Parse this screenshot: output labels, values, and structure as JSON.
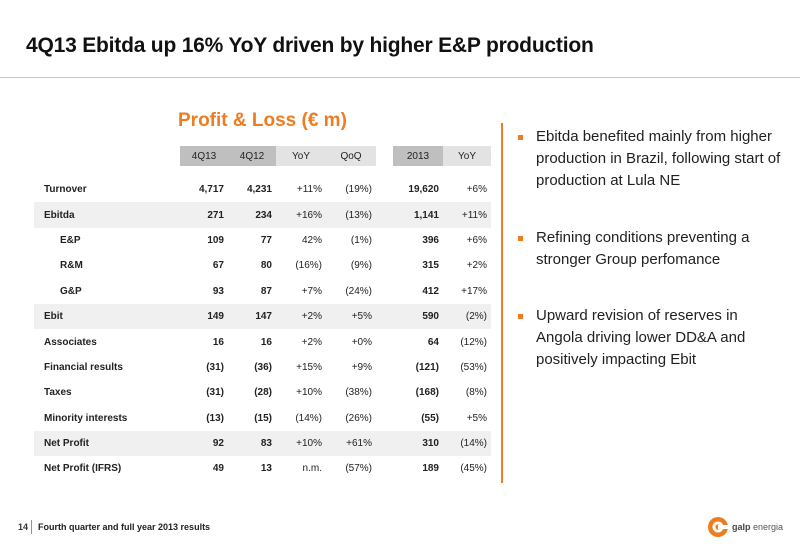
{
  "slide": {
    "title": "4Q13 Ebitda up 16% YoY driven by higher E&P production",
    "section_heading": "Profit & Loss (€ m)"
  },
  "table": {
    "headers": {
      "q4_13": "4Q13",
      "q4_12": "4Q12",
      "yoy": "YoY",
      "qoq": "QoQ",
      "fy_2013": "2013",
      "fy_yoy": "YoY"
    },
    "rows": [
      {
        "label": "Turnover",
        "q4_13": "4,717",
        "q4_12": "4,231",
        "yoy": "+11%",
        "qoq": "(19%)",
        "fy_2013": "19,620",
        "fy_yoy": "+6%"
      },
      {
        "label": "Ebitda",
        "q4_13": "271",
        "q4_12": "234",
        "yoy": "+16%",
        "qoq": "(13%)",
        "fy_2013": "1,141",
        "fy_yoy": "+11%"
      },
      {
        "label": "E&P",
        "q4_13": "109",
        "q4_12": "77",
        "yoy": "42%",
        "qoq": "(1%)",
        "fy_2013": "396",
        "fy_yoy": "+6%"
      },
      {
        "label": "R&M",
        "q4_13": "67",
        "q4_12": "80",
        "yoy": "(16%)",
        "qoq": "(9%)",
        "fy_2013": "315",
        "fy_yoy": "+2%"
      },
      {
        "label": "G&P",
        "q4_13": "93",
        "q4_12": "87",
        "yoy": "+7%",
        "qoq": "(24%)",
        "fy_2013": "412",
        "fy_yoy": "+17%"
      },
      {
        "label": "Ebit",
        "q4_13": "149",
        "q4_12": "147",
        "yoy": "+2%",
        "qoq": "+5%",
        "fy_2013": "590",
        "fy_yoy": "(2%)"
      },
      {
        "label": "Associates",
        "q4_13": "16",
        "q4_12": "16",
        "yoy": "+2%",
        "qoq": "+0%",
        "fy_2013": "64",
        "fy_yoy": "(12%)"
      },
      {
        "label": "Financial results",
        "q4_13": "(31)",
        "q4_12": "(36)",
        "yoy": "+15%",
        "qoq": "+9%",
        "fy_2013": "(121)",
        "fy_yoy": "(53%)"
      },
      {
        "label": "Taxes",
        "q4_13": "(31)",
        "q4_12": "(28)",
        "yoy": "+10%",
        "qoq": "(38%)",
        "fy_2013": "(168)",
        "fy_yoy": "(8%)"
      },
      {
        "label": "Minority interests",
        "q4_13": "(13)",
        "q4_12": "(15)",
        "yoy": "(14%)",
        "qoq": "(26%)",
        "fy_2013": "(55)",
        "fy_yoy": "+5%"
      },
      {
        "label": "Net Profit",
        "q4_13": "92",
        "q4_12": "83",
        "yoy": "+10%",
        "qoq": "+61%",
        "fy_2013": "310",
        "fy_yoy": "(14%)"
      },
      {
        "label": "Net Profit (IFRS)",
        "q4_13": "49",
        "q4_12": "13",
        "yoy": "n.m.",
        "qoq": "(57%)",
        "fy_2013": "189",
        "fy_yoy": "(45%)"
      }
    ]
  },
  "bullets": [
    "Ebitda benefited mainly from higher production in Brazil, following start of production at Lula NE",
    "Refining conditions preventing a stronger Group perfomance",
    "Upward revision of reserves in Angola driving lower DD&A and positively impacting Ebit"
  ],
  "footer": {
    "page_number": "14",
    "text": "Fourth quarter and full year 2013 results"
  },
  "logo": {
    "brand": "galp",
    "suffix": "energia"
  },
  "colors": {
    "accent": "#ee7d22",
    "header_dark": "#bfbfbf",
    "header_light": "#e3e3e3",
    "row_shade": "#f0f0f0"
  }
}
